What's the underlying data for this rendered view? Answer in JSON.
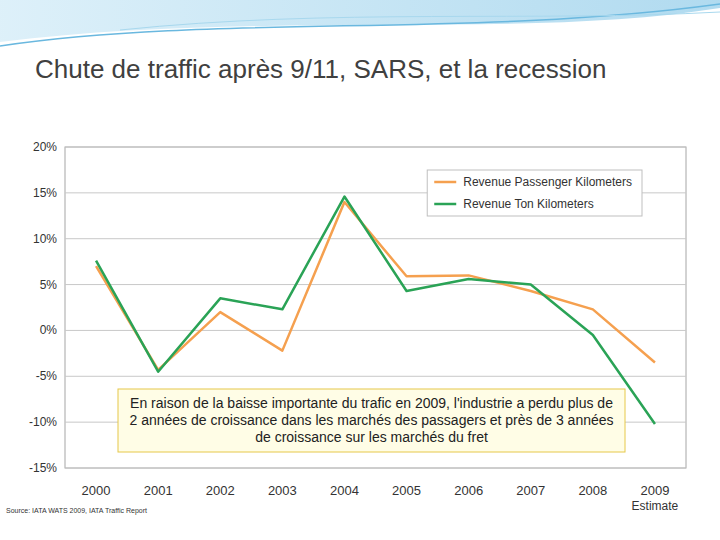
{
  "chart_data": {
    "type": "line",
    "title": "Chute de traffic après 9/11, SARS, et la recession",
    "categories": [
      "2000",
      "2001",
      "2002",
      "2003",
      "2004",
      "2005",
      "2006",
      "2007",
      "2008",
      "2009"
    ],
    "series": [
      {
        "name": "Revenue Passenger Kilometers",
        "color": "#f5a04f",
        "values": [
          7.0,
          -4.3,
          2.0,
          -2.2,
          14.0,
          5.9,
          6.0,
          4.3,
          2.3,
          -3.5
        ]
      },
      {
        "name": "Revenue Ton Kilometers",
        "color": "#2aa356",
        "values": [
          7.6,
          -4.5,
          3.5,
          2.3,
          14.6,
          4.3,
          5.6,
          5.0,
          -0.5,
          -10.2
        ]
      }
    ],
    "ylim": [
      -15,
      20
    ],
    "yticks": [
      {
        "value": -15,
        "label": "-15%"
      },
      {
        "value": -10,
        "label": "-10%"
      },
      {
        "value": -5,
        "label": "-5%"
      },
      {
        "value": 0,
        "label": "0%"
      },
      {
        "value": 5,
        "label": "5%"
      },
      {
        "value": 10,
        "label": "10%"
      },
      {
        "value": 15,
        "label": "15%"
      },
      {
        "value": 20,
        "label": "20%"
      }
    ],
    "grid": true,
    "legend": "upper right",
    "annotations": [
      {
        "text": "En raison de la baisse importante du trafic en 2009, l'industrie a perdu plus de 2 années de croissance dans les marchés des passagers et près de 3 années de croissance sur les marchés du fret"
      },
      {
        "text": "Estimate",
        "category": "2009"
      }
    ],
    "source": "Source: IATA WATS 2009, IATA Traffic Report"
  }
}
